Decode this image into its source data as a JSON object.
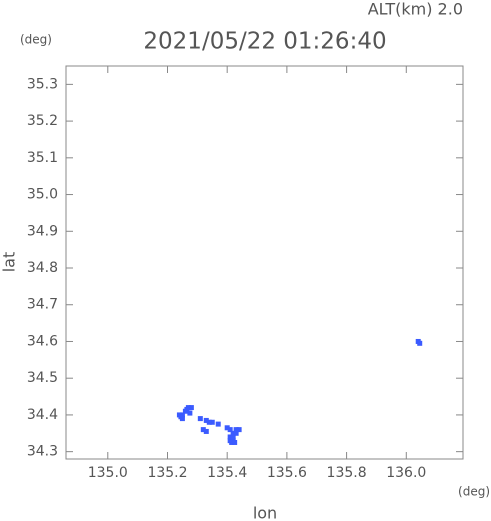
{
  "chart_data": {
    "type": "scatter",
    "title": "2021/05/22 01:26:40",
    "subtitle": "ALT(km) 2.0",
    "y_unit": "(deg)",
    "x_unit": "(deg)",
    "x_label": "lon",
    "y_label": "lat",
    "color": "#3b5bff",
    "xlim": [
      134.86,
      136.19
    ],
    "ylim": [
      34.28,
      35.35
    ],
    "xticks": [
      {
        "value": 135,
        "label": "135.0"
      },
      135.2,
      135.4,
      135.6,
      135.8,
      {
        "value": 136,
        "label": "136.0"
      }
    ],
    "yticks": [
      34.3,
      34.4,
      34.5,
      34.6,
      34.7,
      34.8,
      34.9,
      {
        "value": 35,
        "label": "35.0"
      },
      35.1,
      35.2,
      35.3
    ],
    "x": [
      135.27,
      135.28,
      135.26,
      135.25,
      135.24,
      135.25,
      135.265,
      135.275,
      135.245,
      135.31,
      135.33,
      135.35,
      135.32,
      135.33,
      135.37,
      135.34,
      135.41,
      135.42,
      135.41,
      135.42,
      135.42,
      135.43,
      135.41,
      135.43,
      135.4,
      135.44,
      135.415,
      135.425,
      136.04,
      136.045
    ],
    "y": [
      34.42,
      34.42,
      34.41,
      34.4,
      34.4,
      34.39,
      34.415,
      34.405,
      34.395,
      34.39,
      34.385,
      34.38,
      34.36,
      34.355,
      34.375,
      34.38,
      34.33,
      34.33,
      34.34,
      34.34,
      34.35,
      34.35,
      34.36,
      34.36,
      34.365,
      34.36,
      34.325,
      34.325,
      34.6,
      34.595
    ]
  }
}
